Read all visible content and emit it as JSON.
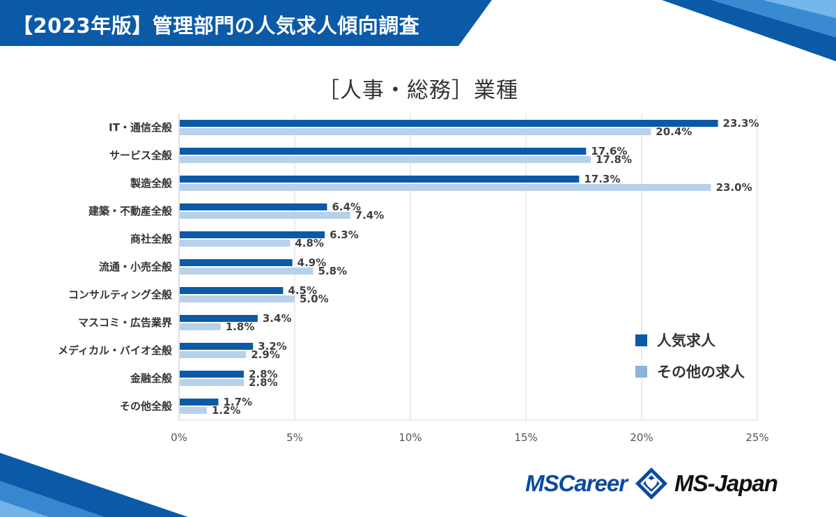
{
  "banner": {
    "title": "【2023年版】管理部門の人気求人傾向調査"
  },
  "colors": {
    "banner": "#0a5aa8",
    "popular": "#0a5aa8",
    "other": "#b7d1ea",
    "legend_other": "#8ab3dd",
    "axis_text": "#555555",
    "grid": "#d9d9d9"
  },
  "legend": {
    "popular_label": "人気求人",
    "other_label": "その他の求人"
  },
  "logo": {
    "left_word": "MSCareer",
    "right_word": "MS-Japan",
    "mark_icon": "diamond-heart-icon"
  },
  "chart_data": {
    "type": "bar",
    "orientation": "horizontal",
    "title": "［人事・総務］業種",
    "categories": [
      "IT・通信全般",
      "サービス全般",
      "製造全般",
      "建築・不動産全般",
      "商社全般",
      "流通・小売全般",
      "コンサルティング全般",
      "マスコミ・広告業界",
      "メディカル・バイオ全般",
      "金融全般",
      "その他全般"
    ],
    "series": [
      {
        "name": "人気求人",
        "values": [
          23.3,
          17.6,
          17.3,
          6.4,
          6.3,
          4.9,
          4.5,
          3.4,
          3.2,
          2.8,
          1.7
        ]
      },
      {
        "name": "その他の求人",
        "values": [
          20.4,
          17.8,
          23.0,
          7.4,
          4.8,
          5.8,
          5.0,
          1.8,
          2.9,
          2.8,
          1.2
        ]
      }
    ],
    "value_format": "{v}%",
    "xlim": [
      0,
      25
    ],
    "xticks": [
      0,
      5,
      10,
      15,
      20,
      25
    ],
    "xtick_labels": [
      "0%",
      "5%",
      "10%",
      "15%",
      "20%",
      "25%"
    ],
    "grid": true,
    "legend_position": "lower-right"
  }
}
